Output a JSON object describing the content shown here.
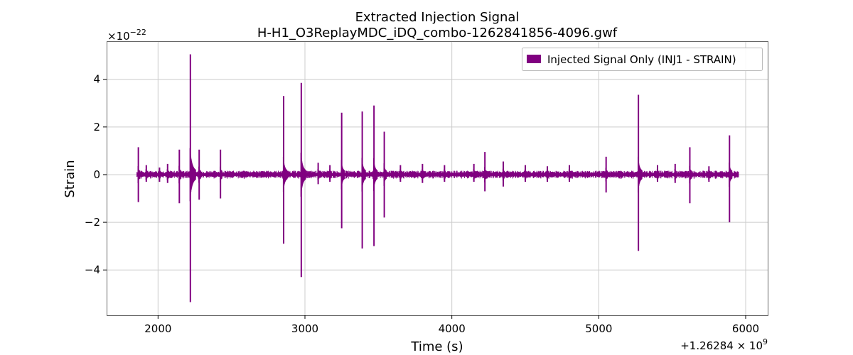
{
  "chart_data": {
    "type": "line",
    "title": "Extracted Injection Signal",
    "subtitle": "H-H1_O3ReplayMDC_iDQ_combo-1262841856-4096.gwf",
    "xlabel": "Time (s)",
    "ylabel": "Strain",
    "x_offset_label": "+1.26284 × 10",
    "x_offset_exp": "9",
    "y_scale_label": "×10",
    "y_scale_exp": "−22",
    "xlim": [
      1650,
      6150
    ],
    "ylim": [
      -5.9,
      5.6
    ],
    "xticks": [
      2000,
      3000,
      4000,
      5000,
      6000
    ],
    "xtick_labels": [
      "2000",
      "3000",
      "4000",
      "5000",
      "6000"
    ],
    "yticks": [
      -4,
      -2,
      0,
      2,
      4
    ],
    "ytick_labels": [
      "−4",
      "−2",
      "0",
      "2",
      "4"
    ],
    "grid": true,
    "legend_position": "top-right",
    "series_color": "#800080",
    "series": [
      {
        "name": "Injected Signal Only (INJ1 - STRAIN)",
        "x_range": [
          1856,
          5952
        ],
        "baseline_envelope": 0.15,
        "spikes": [
          {
            "x": 1866,
            "max": 1.15,
            "min": -1.15
          },
          {
            "x": 1920,
            "max": 0.4,
            "min": -0.3
          },
          {
            "x": 2010,
            "max": 0.3,
            "min": -0.3
          },
          {
            "x": 2065,
            "max": 0.45,
            "min": -0.35
          },
          {
            "x": 2145,
            "max": 1.05,
            "min": -1.2
          },
          {
            "x": 2220,
            "max": 5.05,
            "min": -5.35
          },
          {
            "x": 2280,
            "max": 1.05,
            "min": -1.05
          },
          {
            "x": 2425,
            "max": 1.05,
            "min": -1.0
          },
          {
            "x": 2855,
            "max": 3.3,
            "min": -2.9
          },
          {
            "x": 2975,
            "max": 3.85,
            "min": -4.3
          },
          {
            "x": 3090,
            "max": 0.5,
            "min": -0.4
          },
          {
            "x": 3170,
            "max": 0.4,
            "min": -0.3
          },
          {
            "x": 3250,
            "max": 2.6,
            "min": -2.25
          },
          {
            "x": 3390,
            "max": 2.65,
            "min": -3.1
          },
          {
            "x": 3470,
            "max": 2.9,
            "min": -3.0
          },
          {
            "x": 3540,
            "max": 1.8,
            "min": -1.8
          },
          {
            "x": 3650,
            "max": 0.4,
            "min": -0.3
          },
          {
            "x": 3800,
            "max": 0.45,
            "min": -0.35
          },
          {
            "x": 3950,
            "max": 0.4,
            "min": -0.3
          },
          {
            "x": 4150,
            "max": 0.45,
            "min": -0.3
          },
          {
            "x": 4225,
            "max": 0.95,
            "min": -0.7
          },
          {
            "x": 4350,
            "max": 0.55,
            "min": -0.5
          },
          {
            "x": 4500,
            "max": 0.4,
            "min": -0.3
          },
          {
            "x": 4650,
            "max": 0.35,
            "min": -0.3
          },
          {
            "x": 4800,
            "max": 0.4,
            "min": -0.3
          },
          {
            "x": 5050,
            "max": 0.75,
            "min": -0.75
          },
          {
            "x": 5270,
            "max": 3.35,
            "min": -3.2
          },
          {
            "x": 5400,
            "max": 0.4,
            "min": -0.3
          },
          {
            "x": 5520,
            "max": 0.45,
            "min": -0.35
          },
          {
            "x": 5620,
            "max": 1.15,
            "min": -1.2
          },
          {
            "x": 5750,
            "max": 0.35,
            "min": -0.3
          },
          {
            "x": 5890,
            "max": 1.65,
            "min": -2.0
          }
        ]
      }
    ]
  }
}
